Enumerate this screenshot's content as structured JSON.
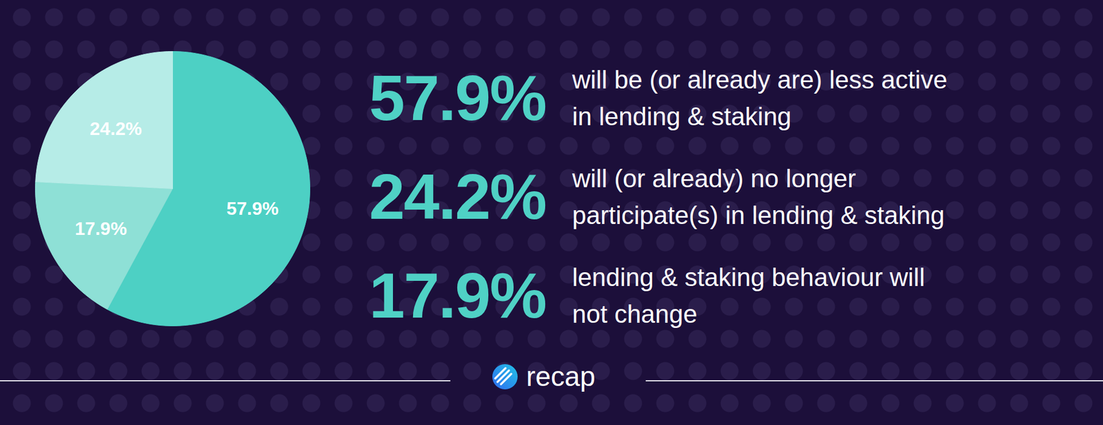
{
  "chart_data": {
    "type": "pie",
    "categories": [
      "will be (or already are) less active\nin lending & staking",
      "lending & staking behaviour will\nnot change",
      "will (or already) no longer\nparticipate(s) in lending & staking"
    ],
    "values": [
      57.9,
      17.9,
      24.2
    ],
    "value_labels": [
      "57.9%",
      "17.9%",
      "24.2%"
    ],
    "colors": [
      "#4dd0c4",
      "#8ee0d6",
      "#b6ece7"
    ],
    "data_labels": true,
    "annotations": [
      "recap"
    ]
  }
}
